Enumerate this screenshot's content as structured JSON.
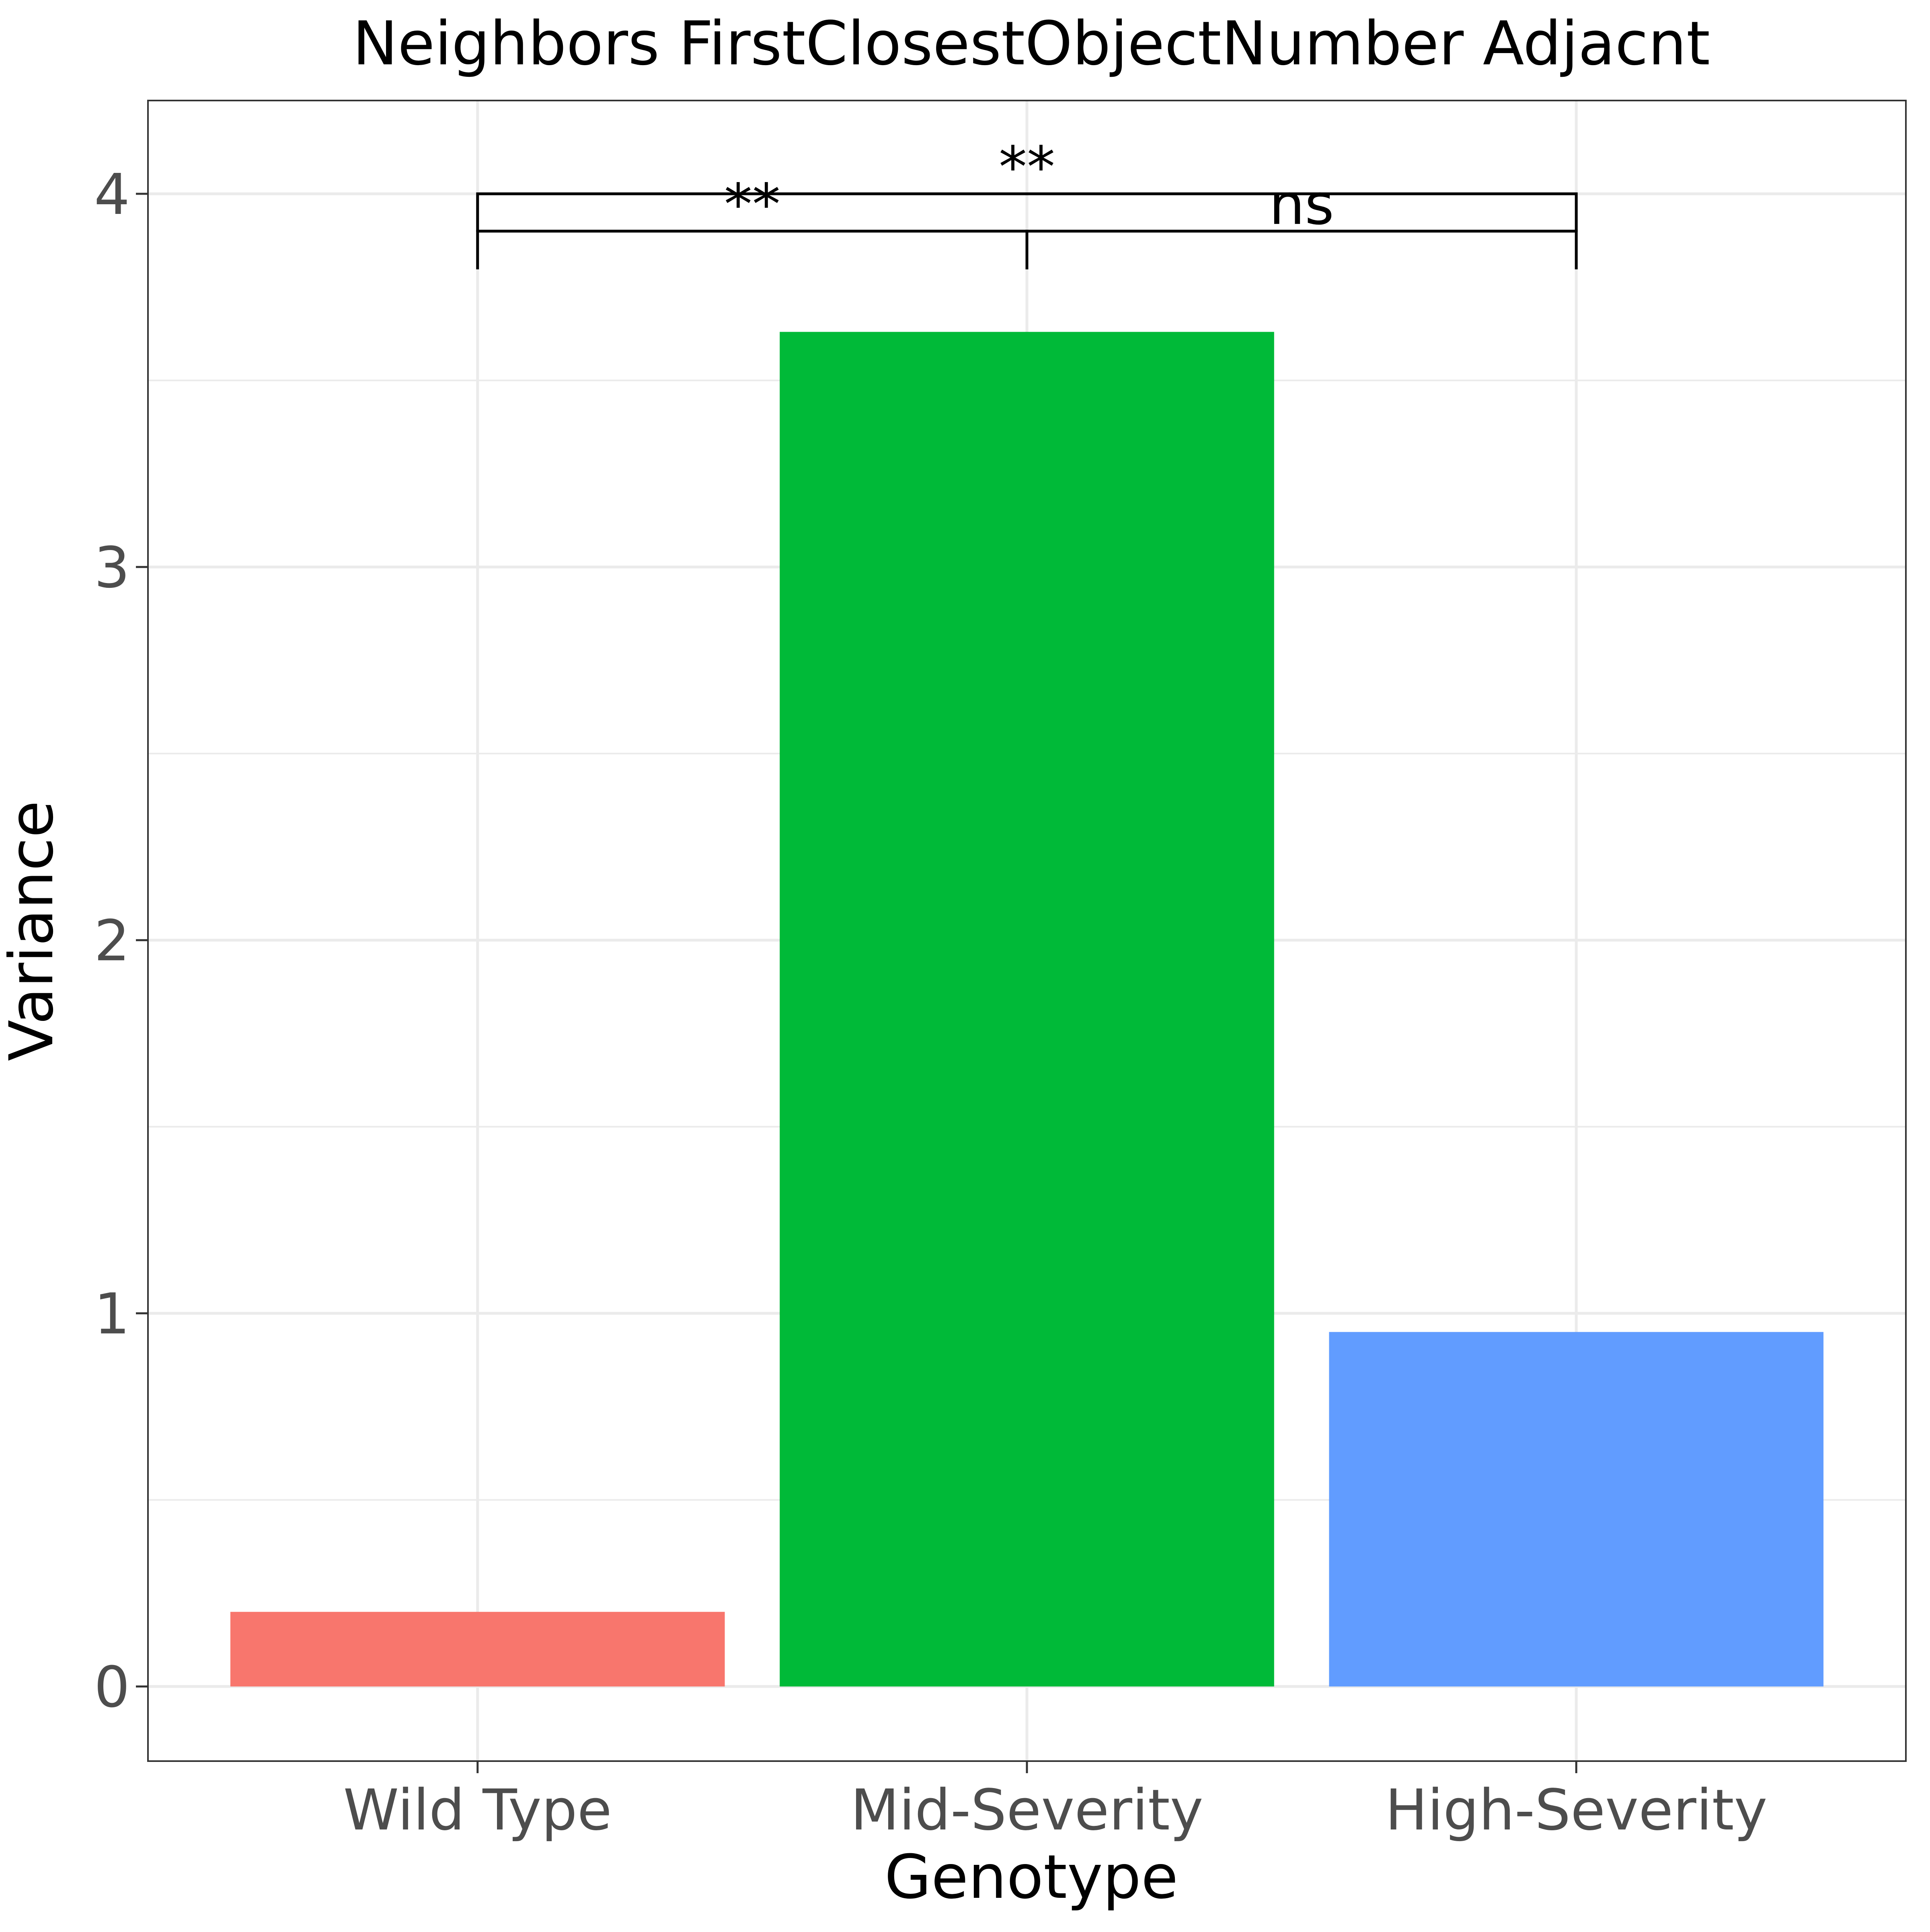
{
  "chart_data": {
    "type": "bar",
    "title": "Neighbors FirstClosestObjectNumber Adjacnt",
    "xlabel": "Genotype",
    "ylabel": "Variance",
    "categories": [
      "Wild Type",
      "Mid-Severity",
      "High-Severity"
    ],
    "values": [
      0.2,
      3.63,
      0.95
    ],
    "colors": [
      "#F8766D",
      "#00BA38",
      "#619CFF"
    ],
    "ylim": [
      -0.2,
      4.25
    ],
    "yticks": [
      0,
      1,
      2,
      3,
      4
    ],
    "grid": true,
    "legend": "none",
    "comparisons": [
      {
        "from": "Wild Type",
        "to": "Mid-Severity",
        "label": "**",
        "y": 3.9
      },
      {
        "from": "Mid-Severity",
        "to": "High-Severity",
        "label": "ns",
        "y": 3.9
      },
      {
        "from": "Wild Type",
        "to": "High-Severity",
        "label": "**",
        "y": 4.0
      }
    ]
  }
}
